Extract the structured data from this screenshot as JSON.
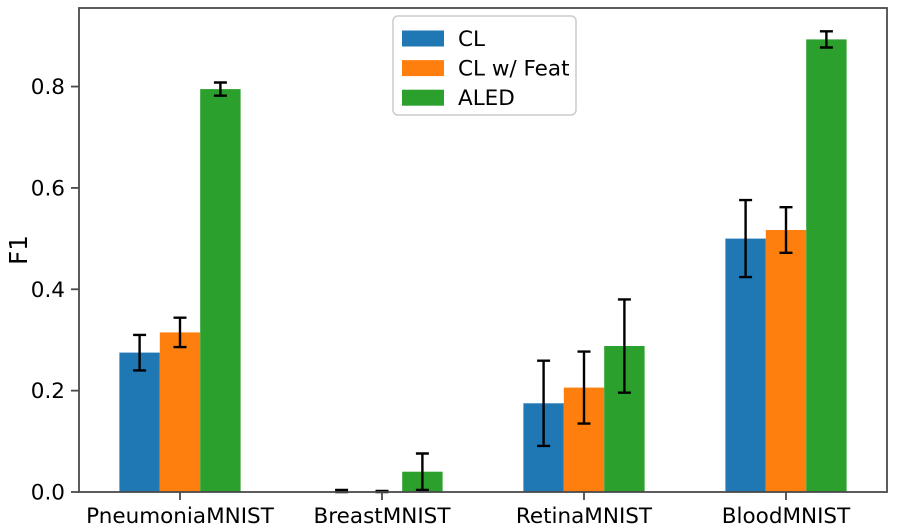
{
  "chart_data": {
    "type": "bar",
    "title": "",
    "xlabel": "",
    "ylabel": "F1",
    "categories": [
      "PneumoniaMNIST",
      "BreastMNIST",
      "RetinaMNIST",
      "BloodMNIST"
    ],
    "series": [
      {
        "name": "CL",
        "color": "#1f77b4",
        "values": [
          0.275,
          0.001,
          0.175,
          0.5
        ],
        "errors": [
          0.035,
          0.003,
          0.084,
          0.076
        ]
      },
      {
        "name": "CL w/ Feat",
        "color": "#ff7f0e",
        "values": [
          0.315,
          0.001,
          0.206,
          0.517
        ],
        "errors": [
          0.029,
          0.001,
          0.071,
          0.045
        ]
      },
      {
        "name": "ALED",
        "color": "#2ca02c",
        "values": [
          0.795,
          0.04,
          0.288,
          0.893
        ],
        "errors": [
          0.013,
          0.036,
          0.092,
          0.016
        ]
      }
    ],
    "ylim": [
      0,
      0.955
    ],
    "yticks": [
      "0.0",
      "0.2",
      "0.4",
      "0.6",
      "0.8"
    ],
    "grid": false,
    "error_bars": true,
    "error_bar_color": "#000000",
    "legend": {
      "position": "upper center",
      "entries": [
        "CL",
        "CL w/ Feat",
        "ALED"
      ],
      "border_color": "#cccccc",
      "background": "#ffffff"
    },
    "spine_color": "#4a4a4a"
  }
}
